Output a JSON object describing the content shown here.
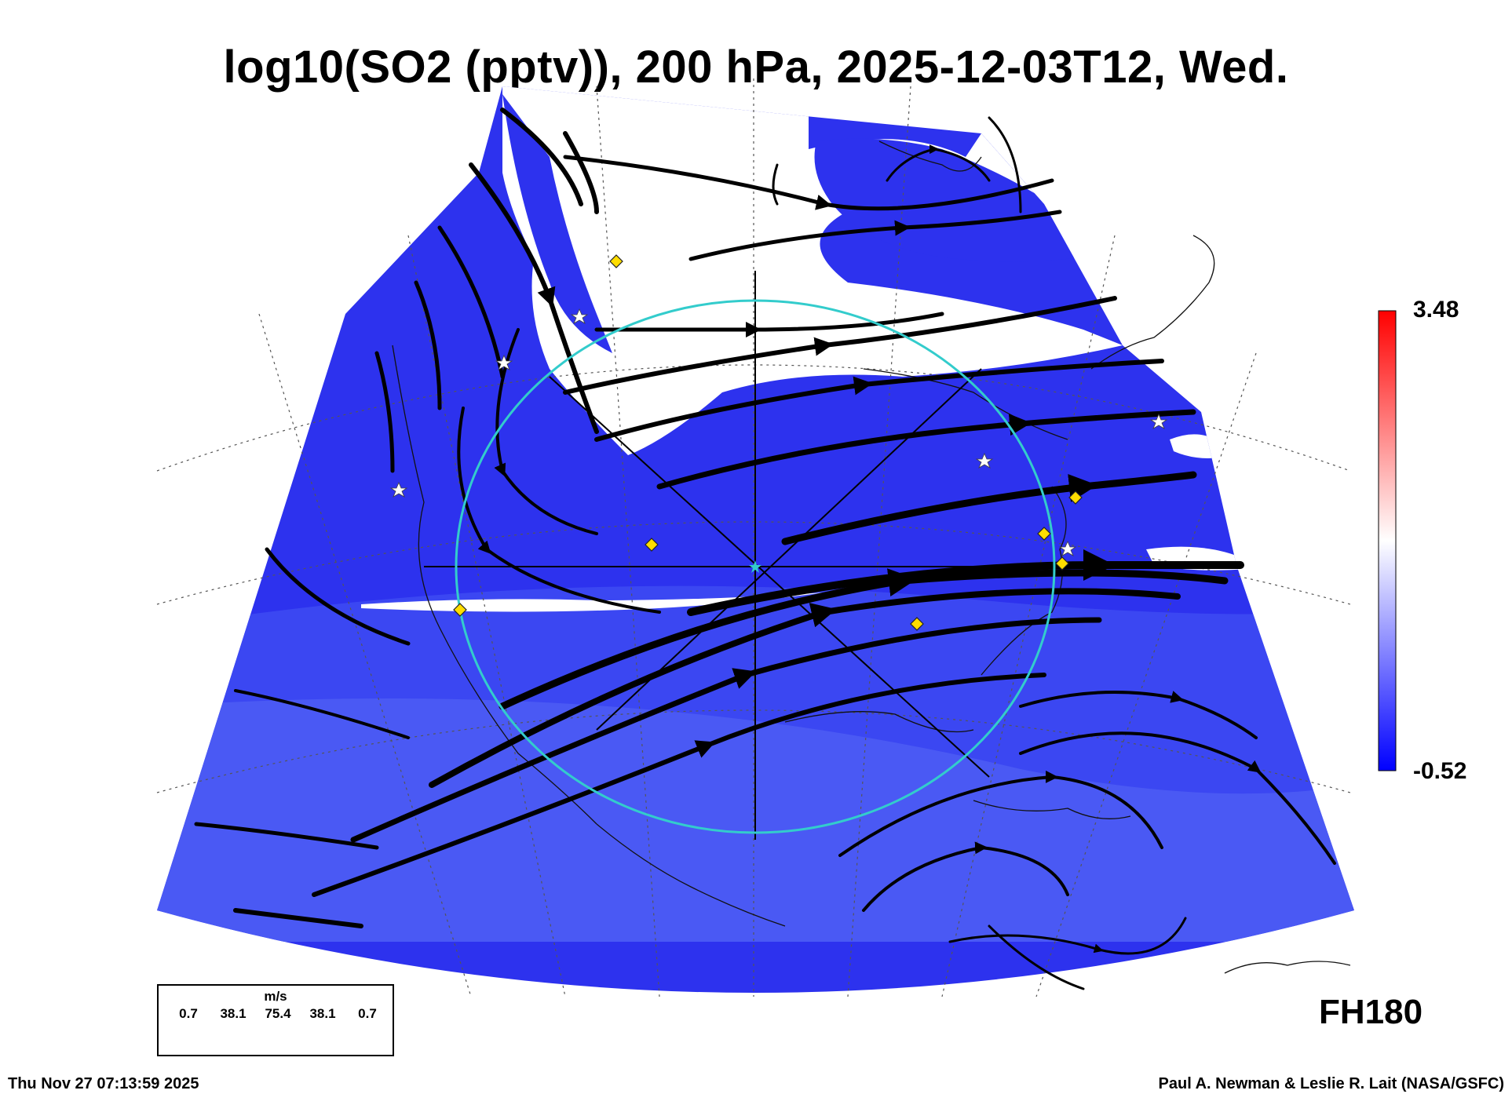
{
  "title": "log10(SO2 (pptv)), 200 hPa, 2025-12-03T12, Wed.",
  "colorbar": {
    "max": "3.48",
    "min": "-0.52",
    "max_color": "#ff0000",
    "mid_color": "#ffffff",
    "min_color": "#0000ff"
  },
  "field_colors": {
    "low": "#2a2cf0",
    "mid": "#4a5cf5",
    "clear": "#ffffff"
  },
  "forecast_hour": "FH180",
  "legend": {
    "unit": "m/s",
    "values": [
      "0.7",
      "38.1",
      "75.4",
      "38.1",
      "0.7"
    ]
  },
  "timestamp": "Thu Nov 27 07:13:59 2025",
  "credit": "Paul A. Newman & Leslie R. Lait (NASA/GSFC)",
  "overlay": {
    "ring_color": "#33cccc",
    "station_marker_color": "#ffdd00"
  }
}
